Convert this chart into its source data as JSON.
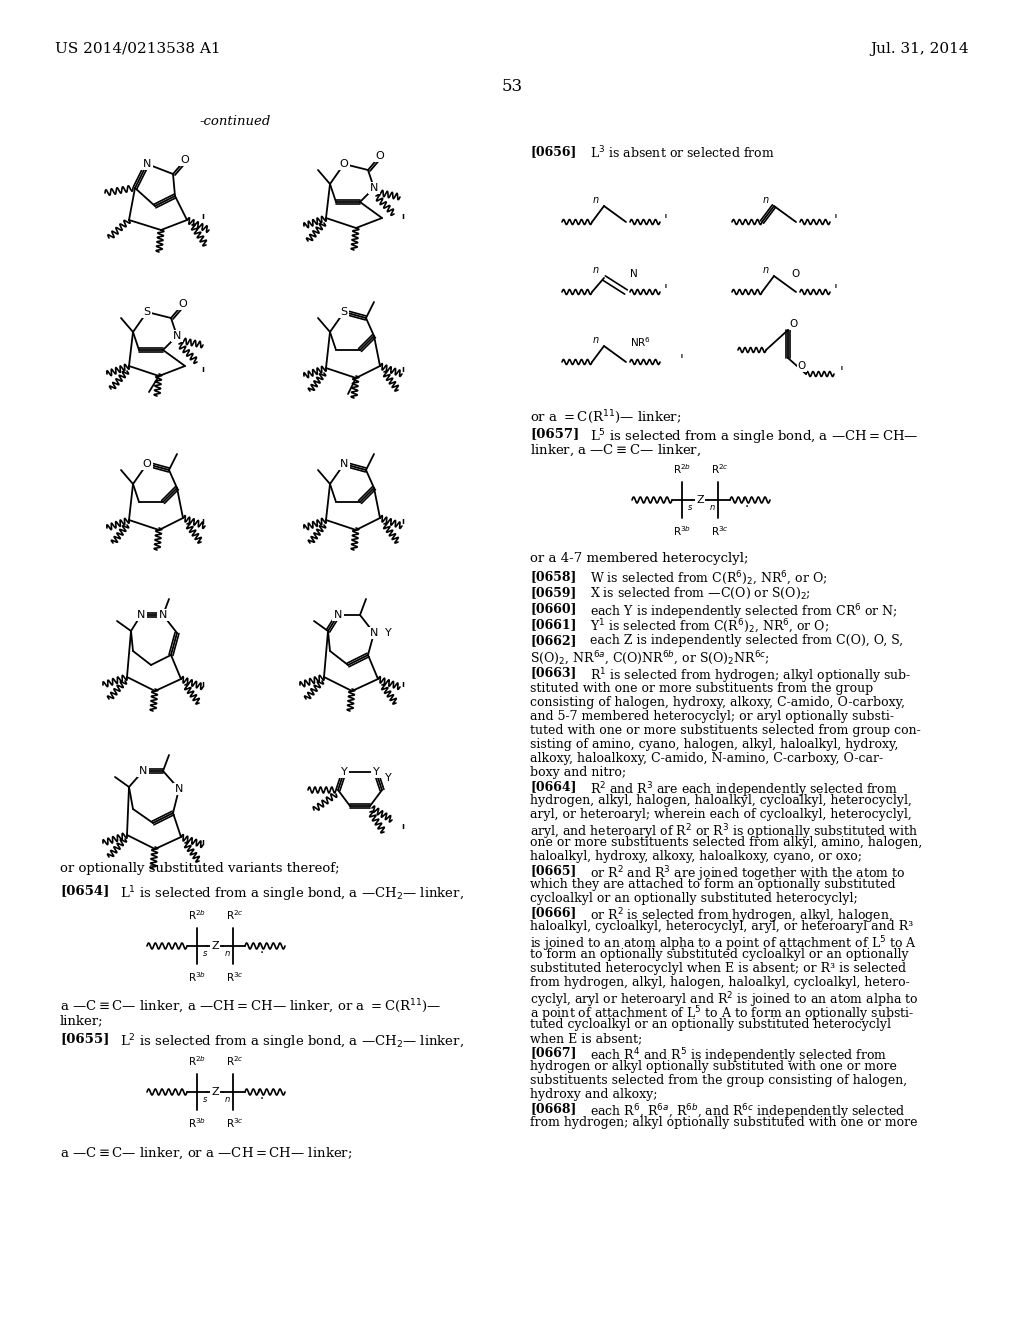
{
  "bg": "#ffffff",
  "header_left": "US 2014/0213538 A1",
  "header_right": "Jul. 31, 2014",
  "page_num": "53",
  "continued": "-continued"
}
